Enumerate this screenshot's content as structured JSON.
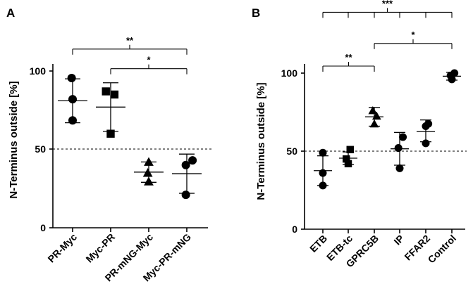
{
  "chart_data": [
    {
      "panel": "A",
      "type": "scatter",
      "ylabel": "N-Terminus outside  [%]",
      "ylim": [
        0,
        100
      ],
      "yticks": [
        "0",
        "50",
        "100"
      ],
      "reference_line": 50,
      "categories": [
        "PR-Myc",
        "Myc-PR",
        "PR-mNG-Myc",
        "Myc-PR-mNG"
      ],
      "series": [
        {
          "name": "PR-Myc",
          "marker": "circle",
          "points": [
            [
              -0.05,
              95.5
            ],
            [
              0.0,
              82
            ],
            [
              0.0,
              68.5
            ]
          ],
          "mean": 81,
          "sd_low": 67,
          "sd_high": 95
        },
        {
          "name": "Myc-PR",
          "marker": "square",
          "points": [
            [
              -0.25,
              87
            ],
            [
              0.2,
              85
            ],
            [
              0.0,
              60
            ]
          ],
          "mean": 77,
          "sd_low": 61.5,
          "sd_high": 92.5
        },
        {
          "name": "PR-mNG-Myc",
          "marker": "triangle",
          "points": [
            [
              0.0,
              42
            ],
            [
              -0.05,
              35
            ],
            [
              0.0,
              29.5
            ]
          ],
          "mean": 35.5,
          "sd_low": 29,
          "sd_high": 42
        },
        {
          "name": "Myc-PR-mNG",
          "marker": "circle",
          "points": [
            [
              0.3,
              43
            ],
            [
              -0.05,
              40
            ],
            [
              -0.05,
              21
            ]
          ],
          "mean": 34.5,
          "sd_low": 22,
          "sd_high": 47
        }
      ],
      "significance": [
        {
          "label": "**",
          "from": 0,
          "to": 3,
          "level": 114
        },
        {
          "label": "*",
          "from": 1,
          "to": 3,
          "level": 101.5
        }
      ]
    },
    {
      "panel": "B",
      "type": "scatter",
      "ylabel": "N-Terminus outside  [%]",
      "ylim": [
        0,
        100
      ],
      "yticks": [
        "0",
        "50",
        "100"
      ],
      "reference_line": 50,
      "categories": [
        "ETB",
        "ETB-tc",
        "GPRC5B",
        "IP",
        "FFAR2",
        "Control"
      ],
      "series": [
        {
          "name": "ETB",
          "marker": "circle",
          "points": [
            [
              0.0,
              49
            ],
            [
              0.0,
              36
            ],
            [
              0.0,
              28
            ]
          ],
          "mean": 37.5,
          "sd_low": 28,
          "sd_high": 47
        },
        {
          "name": "ETB-tc",
          "marker": "square",
          "points": [
            [
              0.15,
              51
            ],
            [
              -0.15,
              45
            ],
            [
              0.0,
              42
            ]
          ],
          "mean": 45.5,
          "sd_low": 41.5,
          "sd_high": 49.5
        },
        {
          "name": "GPRC5B",
          "marker": "triangle",
          "points": [
            [
              -0.12,
              76
            ],
            [
              0.18,
              72.5
            ],
            [
              0.0,
              67.5
            ]
          ],
          "mean": 72,
          "sd_low": 66,
          "sd_high": 78
        },
        {
          "name": "IP",
          "marker": "circle",
          "points": [
            [
              0.25,
              59
            ],
            [
              -0.1,
              52
            ],
            [
              0.0,
              39
            ]
          ],
          "mean": 51.5,
          "sd_low": 41,
          "sd_high": 62
        },
        {
          "name": "FFAR2",
          "marker": "circle",
          "points": [
            [
              0.2,
              67.5
            ],
            [
              0.0,
              66
            ],
            [
              0.0,
              55
            ]
          ],
          "mean": 62.5,
          "sd_low": 56,
          "sd_high": 70
        },
        {
          "name": "Control",
          "marker": "circle",
          "points": [
            [
              -0.1,
              98.5
            ],
            [
              0.2,
              100
            ],
            [
              0.0,
              96
            ]
          ],
          "mean": 98,
          "sd_low": 95.5,
          "sd_high": 100.5
        }
      ],
      "significance": [
        {
          "label": "***",
          "from": 0,
          "to": 5,
          "level": 139,
          "ticks": [
            0,
            1,
            2,
            3,
            4,
            5
          ]
        },
        {
          "label": "*",
          "from": 2,
          "to": 5,
          "level": 119
        },
        {
          "label": "**",
          "from": 0,
          "to": 2,
          "level": 104.5
        }
      ]
    }
  ]
}
